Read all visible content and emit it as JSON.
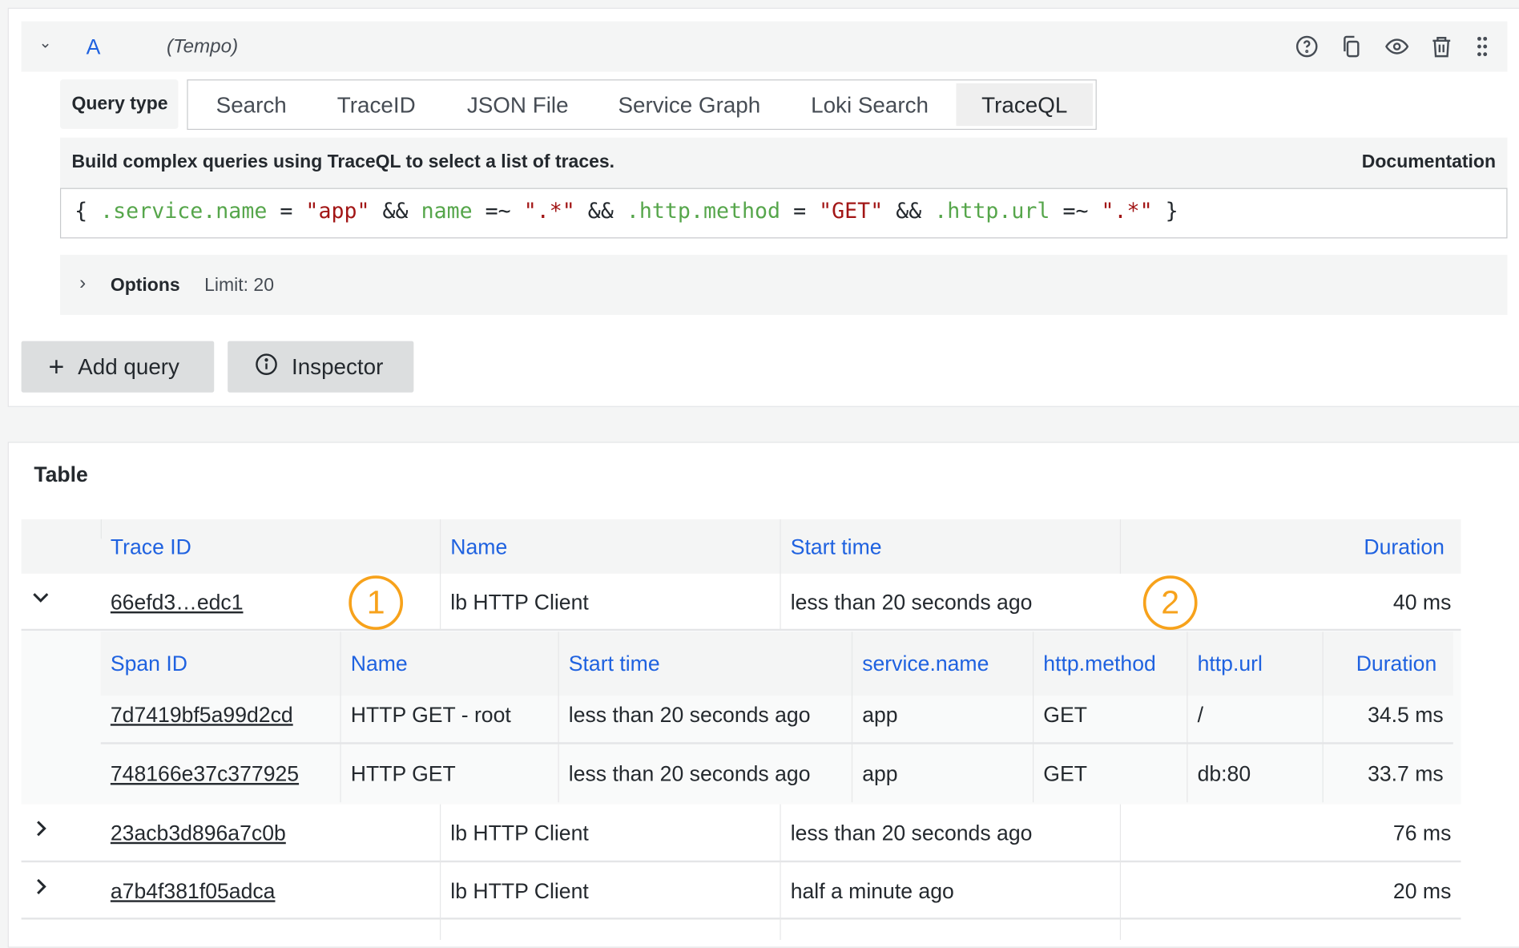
{
  "query": {
    "ref_id": "A",
    "datasource": "(Tempo)",
    "header_icons": [
      "help-icon",
      "duplicate-icon",
      "eye-icon",
      "trash-icon",
      "drag-handle-icon"
    ],
    "query_type_label": "Query type",
    "query_types": [
      "Search",
      "TraceID",
      "JSON File",
      "Service Graph",
      "Loki Search",
      "TraceQL"
    ],
    "selected_query_type": "TraceQL",
    "description": "Build complex queries using TraceQL to select a list of traces.",
    "documentation_link": "Documentation",
    "editor_tokens": [
      {
        "t": "{ ",
        "c": "k"
      },
      {
        "t": ".service.name",
        "c": "g"
      },
      {
        "t": " = ",
        "c": "k"
      },
      {
        "t": "\"app\"",
        "c": "r"
      },
      {
        "t": " && ",
        "c": "k"
      },
      {
        "t": "name",
        "c": "g"
      },
      {
        "t": " =~ ",
        "c": "k"
      },
      {
        "t": "\".*\"",
        "c": "r"
      },
      {
        "t": " && ",
        "c": "k"
      },
      {
        "t": ".http.method",
        "c": "g"
      },
      {
        "t": " = ",
        "c": "k"
      },
      {
        "t": "\"GET\"",
        "c": "r"
      },
      {
        "t": " && ",
        "c": "k"
      },
      {
        "t": ".http.url",
        "c": "g"
      },
      {
        "t": " =~ ",
        "c": "k"
      },
      {
        "t": "\".*\"",
        "c": "r"
      },
      {
        "t": " }",
        "c": "k"
      }
    ],
    "options_label": "Options",
    "limit_text": "Limit: 20"
  },
  "actions": {
    "add_query": "Add query",
    "inspector": "Inspector"
  },
  "table": {
    "title": "Table",
    "columns": [
      "Trace ID",
      "Name",
      "Start time",
      "Duration"
    ],
    "rows": [
      {
        "trace_id": "66efd3…edc1",
        "name": "lb HTTP Client",
        "start": "less than 20 seconds ago",
        "duration": "40 ms",
        "expanded": true
      },
      {
        "trace_id": "23acb3d896a7c0b",
        "name": "lb HTTP Client",
        "start": "less than 20 seconds ago",
        "duration": "76 ms",
        "expanded": false
      },
      {
        "trace_id": "a7b4f381f05adca",
        "name": "lb HTTP Client",
        "start": "half a minute ago",
        "duration": "20 ms",
        "expanded": false
      }
    ],
    "span_columns": [
      "Span ID",
      "Name",
      "Start time",
      "service.name",
      "http.method",
      "http.url",
      "Duration"
    ],
    "spans": [
      [
        "7d7419bf5a99d2cd",
        "HTTP GET - root",
        "less than 20 seconds ago",
        "app",
        "GET",
        "/",
        "34.5 ms"
      ],
      [
        "748166e37c377925",
        "HTTP GET",
        "less than 20 seconds ago",
        "app",
        "GET",
        "db:80",
        "33.7 ms"
      ]
    ]
  },
  "annotations": [
    "1",
    "2"
  ],
  "colors": {
    "accent": "#1f62e0",
    "annotation": "#f7a21b",
    "string": "#a21616",
    "attribute": "#56a64b"
  }
}
